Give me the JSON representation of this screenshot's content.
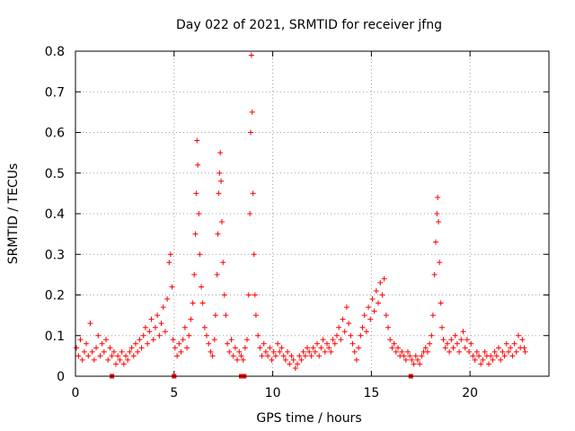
{
  "chart_data": {
    "type": "scatter",
    "title": "Day 022 of 2021, SRMTID for receiver jfng",
    "xlabel": "GPS time / hours",
    "ylabel": "SRMTID / TECUs",
    "xlim": [
      0,
      24
    ],
    "ylim": [
      0,
      0.8
    ],
    "xticks": [
      0,
      5,
      10,
      15,
      20
    ],
    "yticks": [
      0,
      0.1,
      0.2,
      0.3,
      0.4,
      0.5,
      0.6,
      0.7,
      0.8
    ],
    "xtick_labels": [
      "0",
      "5",
      "10",
      "15",
      "20"
    ],
    "ytick_labels": [
      "0",
      "0.1",
      "0.2",
      "0.3",
      "0.4",
      "0.5",
      "0.6",
      "0.7",
      "0.8"
    ],
    "grid": true,
    "marker": "+",
    "color": "#ff0000",
    "series": [
      {
        "name": "SRMTID",
        "points": [
          [
            0.05,
            0.07
          ],
          [
            0.15,
            0.05
          ],
          [
            0.25,
            0.09
          ],
          [
            0.35,
            0.04
          ],
          [
            0.45,
            0.06
          ],
          [
            0.55,
            0.08
          ],
          [
            0.65,
            0.05
          ],
          [
            0.75,
            0.13
          ],
          [
            0.85,
            0.06
          ],
          [
            0.95,
            0.04
          ],
          [
            1.05,
            0.07
          ],
          [
            1.15,
            0.1
          ],
          [
            1.25,
            0.05
          ],
          [
            1.35,
            0.08
          ],
          [
            1.45,
            0.06
          ],
          [
            1.55,
            0.09
          ],
          [
            1.65,
            0.04
          ],
          [
            1.75,
            0.07
          ],
          [
            1.85,
            0.05
          ],
          [
            1.95,
            0.06
          ],
          [
            2.05,
            0.03
          ],
          [
            2.15,
            0.05
          ],
          [
            2.25,
            0.04
          ],
          [
            2.35,
            0.06
          ],
          [
            2.45,
            0.03
          ],
          [
            2.55,
            0.05
          ],
          [
            2.65,
            0.04
          ],
          [
            2.75,
            0.06
          ],
          [
            2.85,
            0.07
          ],
          [
            2.95,
            0.05
          ],
          [
            3.05,
            0.08
          ],
          [
            3.15,
            0.06
          ],
          [
            3.25,
            0.09
          ],
          [
            3.35,
            0.07
          ],
          [
            3.45,
            0.1
          ],
          [
            3.55,
            0.12
          ],
          [
            3.65,
            0.08
          ],
          [
            3.75,
            0.11
          ],
          [
            3.85,
            0.14
          ],
          [
            3.95,
            0.09
          ],
          [
            4.05,
            0.12
          ],
          [
            4.15,
            0.15
          ],
          [
            4.25,
            0.1
          ],
          [
            4.35,
            0.13
          ],
          [
            4.45,
            0.17
          ],
          [
            4.55,
            0.11
          ],
          [
            4.65,
            0.19
          ],
          [
            4.75,
            0.28
          ],
          [
            4.82,
            0.3
          ],
          [
            4.9,
            0.22
          ],
          [
            4.95,
            0.09
          ],
          [
            5.05,
            0.07
          ],
          [
            5.15,
            0.05
          ],
          [
            5.25,
            0.08
          ],
          [
            5.35,
            0.06
          ],
          [
            5.45,
            0.09
          ],
          [
            5.55,
            0.12
          ],
          [
            5.65,
            0.07
          ],
          [
            5.75,
            0.1
          ],
          [
            5.85,
            0.14
          ],
          [
            5.95,
            0.18
          ],
          [
            6.02,
            0.25
          ],
          [
            6.08,
            0.35
          ],
          [
            6.12,
            0.45
          ],
          [
            6.16,
            0.58
          ],
          [
            6.2,
            0.52
          ],
          [
            6.25,
            0.4
          ],
          [
            6.3,
            0.3
          ],
          [
            6.38,
            0.22
          ],
          [
            6.45,
            0.18
          ],
          [
            6.55,
            0.12
          ],
          [
            6.65,
            0.1
          ],
          [
            6.75,
            0.08
          ],
          [
            6.85,
            0.06
          ],
          [
            6.95,
            0.05
          ],
          [
            7.05,
            0.09
          ],
          [
            7.1,
            0.15
          ],
          [
            7.18,
            0.25
          ],
          [
            7.22,
            0.35
          ],
          [
            7.26,
            0.45
          ],
          [
            7.3,
            0.5
          ],
          [
            7.34,
            0.55
          ],
          [
            7.38,
            0.48
          ],
          [
            7.42,
            0.38
          ],
          [
            7.48,
            0.28
          ],
          [
            7.55,
            0.2
          ],
          [
            7.62,
            0.15
          ],
          [
            7.7,
            0.08
          ],
          [
            7.8,
            0.06
          ],
          [
            7.9,
            0.09
          ],
          [
            8.0,
            0.05
          ],
          [
            8.1,
            0.07
          ],
          [
            8.2,
            0.04
          ],
          [
            8.3,
            0.06
          ],
          [
            8.4,
            0.05
          ],
          [
            8.5,
            0.04
          ],
          [
            8.6,
            0.07
          ],
          [
            8.7,
            0.09
          ],
          [
            8.78,
            0.2
          ],
          [
            8.84,
            0.4
          ],
          [
            8.88,
            0.6
          ],
          [
            8.92,
            0.79
          ],
          [
            8.96,
            0.65
          ],
          [
            9.0,
            0.45
          ],
          [
            9.05,
            0.3
          ],
          [
            9.1,
            0.2
          ],
          [
            9.15,
            0.15
          ],
          [
            9.25,
            0.1
          ],
          [
            9.35,
            0.07
          ],
          [
            9.45,
            0.05
          ],
          [
            9.55,
            0.08
          ],
          [
            9.65,
            0.06
          ],
          [
            9.75,
            0.05
          ],
          [
            9.85,
            0.07
          ],
          [
            9.95,
            0.04
          ],
          [
            10.05,
            0.06
          ],
          [
            10.15,
            0.05
          ],
          [
            10.25,
            0.08
          ],
          [
            10.35,
            0.06
          ],
          [
            10.45,
            0.07
          ],
          [
            10.55,
            0.05
          ],
          [
            10.65,
            0.04
          ],
          [
            10.75,
            0.06
          ],
          [
            10.85,
            0.03
          ],
          [
            10.95,
            0.05
          ],
          [
            11.05,
            0.04
          ],
          [
            11.15,
            0.02
          ],
          [
            11.25,
            0.03
          ],
          [
            11.35,
            0.05
          ],
          [
            11.45,
            0.04
          ],
          [
            11.55,
            0.06
          ],
          [
            11.65,
            0.05
          ],
          [
            11.75,
            0.07
          ],
          [
            11.85,
            0.06
          ],
          [
            11.95,
            0.05
          ],
          [
            12.05,
            0.07
          ],
          [
            12.15,
            0.06
          ],
          [
            12.25,
            0.08
          ],
          [
            12.35,
            0.05
          ],
          [
            12.45,
            0.07
          ],
          [
            12.55,
            0.09
          ],
          [
            12.65,
            0.06
          ],
          [
            12.75,
            0.08
          ],
          [
            12.85,
            0.07
          ],
          [
            12.95,
            0.06
          ],
          [
            13.05,
            0.09
          ],
          [
            13.15,
            0.08
          ],
          [
            13.25,
            0.1
          ],
          [
            13.35,
            0.12
          ],
          [
            13.45,
            0.09
          ],
          [
            13.55,
            0.14
          ],
          [
            13.65,
            0.11
          ],
          [
            13.75,
            0.17
          ],
          [
            13.85,
            0.13
          ],
          [
            13.95,
            0.1
          ],
          [
            14.05,
            0.08
          ],
          [
            14.15,
            0.06
          ],
          [
            14.25,
            0.04
          ],
          [
            14.35,
            0.07
          ],
          [
            14.45,
            0.1
          ],
          [
            14.55,
            0.12
          ],
          [
            14.65,
            0.15
          ],
          [
            14.75,
            0.11
          ],
          [
            14.85,
            0.17
          ],
          [
            14.95,
            0.14
          ],
          [
            15.05,
            0.19
          ],
          [
            15.15,
            0.16
          ],
          [
            15.25,
            0.21
          ],
          [
            15.35,
            0.18
          ],
          [
            15.45,
            0.23
          ],
          [
            15.55,
            0.2
          ],
          [
            15.65,
            0.24
          ],
          [
            15.75,
            0.15
          ],
          [
            15.85,
            0.12
          ],
          [
            15.95,
            0.09
          ],
          [
            16.05,
            0.07
          ],
          [
            16.15,
            0.08
          ],
          [
            16.25,
            0.06
          ],
          [
            16.35,
            0.07
          ],
          [
            16.45,
            0.05
          ],
          [
            16.55,
            0.06
          ],
          [
            16.65,
            0.05
          ],
          [
            16.75,
            0.04
          ],
          [
            16.85,
            0.06
          ],
          [
            16.95,
            0.05
          ],
          [
            17.05,
            0.04
          ],
          [
            17.15,
            0.03
          ],
          [
            17.25,
            0.05
          ],
          [
            17.35,
            0.04
          ],
          [
            17.45,
            0.03
          ],
          [
            17.55,
            0.05
          ],
          [
            17.65,
            0.06
          ],
          [
            17.75,
            0.07
          ],
          [
            17.85,
            0.06
          ],
          [
            17.95,
            0.08
          ],
          [
            18.05,
            0.1
          ],
          [
            18.12,
            0.15
          ],
          [
            18.2,
            0.25
          ],
          [
            18.26,
            0.33
          ],
          [
            18.32,
            0.4
          ],
          [
            18.36,
            0.44
          ],
          [
            18.4,
            0.38
          ],
          [
            18.45,
            0.28
          ],
          [
            18.52,
            0.18
          ],
          [
            18.58,
            0.12
          ],
          [
            18.65,
            0.09
          ],
          [
            18.75,
            0.07
          ],
          [
            18.85,
            0.08
          ],
          [
            18.95,
            0.06
          ],
          [
            19.05,
            0.09
          ],
          [
            19.15,
            0.07
          ],
          [
            19.25,
            0.1
          ],
          [
            19.35,
            0.08
          ],
          [
            19.45,
            0.06
          ],
          [
            19.55,
            0.09
          ],
          [
            19.65,
            0.11
          ],
          [
            19.75,
            0.07
          ],
          [
            19.85,
            0.09
          ],
          [
            19.95,
            0.06
          ],
          [
            20.05,
            0.08
          ],
          [
            20.15,
            0.05
          ],
          [
            20.25,
            0.04
          ],
          [
            20.35,
            0.06
          ],
          [
            20.45,
            0.05
          ],
          [
            20.55,
            0.03
          ],
          [
            20.65,
            0.04
          ],
          [
            20.75,
            0.06
          ],
          [
            20.85,
            0.05
          ],
          [
            20.95,
            0.03
          ],
          [
            21.05,
            0.05
          ],
          [
            21.15,
            0.04
          ],
          [
            21.25,
            0.06
          ],
          [
            21.35,
            0.05
          ],
          [
            21.45,
            0.07
          ],
          [
            21.55,
            0.04
          ],
          [
            21.65,
            0.06
          ],
          [
            21.75,
            0.05
          ],
          [
            21.85,
            0.08
          ],
          [
            21.95,
            0.06
          ],
          [
            22.05,
            0.07
          ],
          [
            22.15,
            0.05
          ],
          [
            22.25,
            0.08
          ],
          [
            22.35,
            0.06
          ],
          [
            22.45,
            0.1
          ],
          [
            22.55,
            0.07
          ],
          [
            22.65,
            0.09
          ],
          [
            22.75,
            0.07
          ],
          [
            22.8,
            0.06
          ]
        ]
      }
    ],
    "gap_markers_x": [
      1.85,
      5.0,
      8.4,
      8.55,
      17.0
    ]
  }
}
